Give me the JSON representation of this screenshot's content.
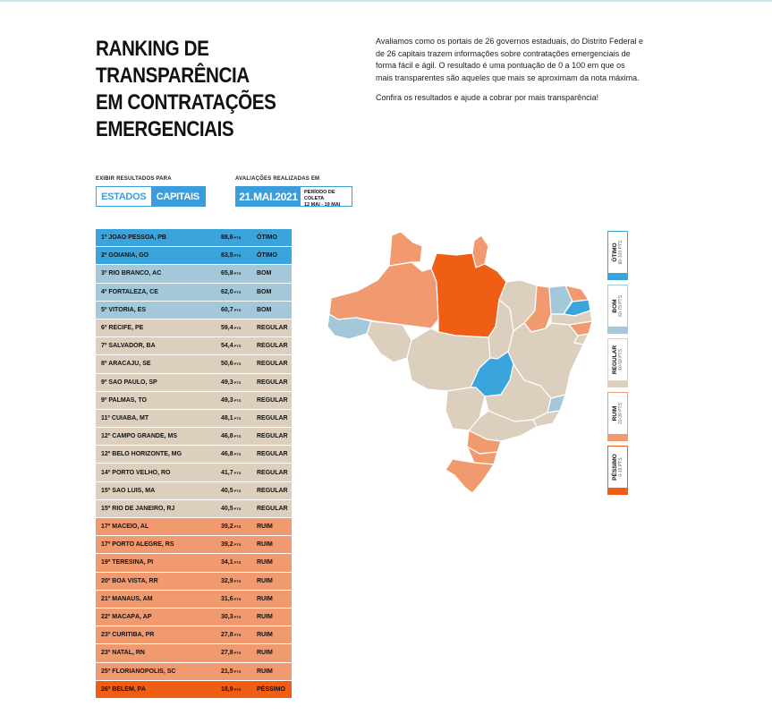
{
  "title_lines": [
    "RANKING DE",
    "TRANSPARÊNCIA",
    "EM CONTRATAÇÕES",
    "EMERGENCIAIS"
  ],
  "intro": {
    "p1": "Avaliamos como os portais de 26 governos estaduais, do Distrito Federal e de 26 capitais trazem informações sobre contratações emergenciais de forma fácil e ágil. O resultado é uma pontuação de 0 a 100 em que os mais transparentes são aqueles que mais se aproximam da nota máxima.",
    "p2": "Confira os resultados e ajude a cobrar por mais transparência!"
  },
  "controls": {
    "show_label": "EXIBIR RESULTADOS PARA",
    "tabs": [
      {
        "label": "ESTADOS",
        "active": false
      },
      {
        "label": "CAPITAIS",
        "active": true
      }
    ],
    "eval_label": "AVALIAÇÕES REALIZADAS EM",
    "date": "21.MAI.2021",
    "period_title": "PERÍODO DE COLETA",
    "period_range": "12 MAI - 19 MAI"
  },
  "colors": {
    "otimo": "#3aa5dd",
    "bom": "#a3c8d9",
    "regular": "#dccfbd",
    "ruim": "#f29a6f",
    "pessimo": "#ef5e14",
    "accent": "#3a9ede"
  },
  "ranking": [
    {
      "name": "1º JOÃO PESSOA, PB",
      "score": "88,6",
      "unit": "PTS",
      "category": "ÓTIMO",
      "level": "otimo"
    },
    {
      "name": "2º GOIÂNIA, GO",
      "score": "83,5",
      "unit": "PTS",
      "category": "ÓTIMO",
      "level": "otimo"
    },
    {
      "name": "3º RIO BRANCO, AC",
      "score": "65,8",
      "unit": "PTS",
      "category": "BOM",
      "level": "bom"
    },
    {
      "name": "4º FORTALEZA, CE",
      "score": "62,0",
      "unit": "PTS",
      "category": "BOM",
      "level": "bom"
    },
    {
      "name": "5º VITÓRIA, ES",
      "score": "60,7",
      "unit": "PTS",
      "category": "BOM",
      "level": "bom"
    },
    {
      "name": "6º RECIFE, PE",
      "score": "59,4",
      "unit": "PTS",
      "category": "REGULAR",
      "level": "regular"
    },
    {
      "name": "7º SALVADOR, BA",
      "score": "54,4",
      "unit": "PTS",
      "category": "REGULAR",
      "level": "regular"
    },
    {
      "name": "8º ARACAJU, SE",
      "score": "50,6",
      "unit": "PTS",
      "category": "REGULAR",
      "level": "regular"
    },
    {
      "name": "9º SÃO PAULO, SP",
      "score": "49,3",
      "unit": "PTS",
      "category": "REGULAR",
      "level": "regular"
    },
    {
      "name": "9º PALMAS, TO",
      "score": "49,3",
      "unit": "PTS",
      "category": "REGULAR",
      "level": "regular"
    },
    {
      "name": "11º CUIABÁ, MT",
      "score": "48,1",
      "unit": "PTS",
      "category": "REGULAR",
      "level": "regular"
    },
    {
      "name": "12º CAMPO GRANDE, MS",
      "score": "46,8",
      "unit": "PTS",
      "category": "REGULAR",
      "level": "regular"
    },
    {
      "name": "12º BELO HORIZONTE, MG",
      "score": "46,8",
      "unit": "PTS",
      "category": "REGULAR",
      "level": "regular"
    },
    {
      "name": "14º PORTO VELHO, RO",
      "score": "41,7",
      "unit": "PTS",
      "category": "REGULAR",
      "level": "regular"
    },
    {
      "name": "15º SÃO LUÍS, MA",
      "score": "40,5",
      "unit": "PTS",
      "category": "REGULAR",
      "level": "regular"
    },
    {
      "name": "15º RIO DE JANEIRO, RJ",
      "score": "40,5",
      "unit": "PTS",
      "category": "REGULAR",
      "level": "regular"
    },
    {
      "name": "17º MACEIÓ, AL",
      "score": "39,2",
      "unit": "PTS",
      "category": "RUIM",
      "level": "ruim"
    },
    {
      "name": "17º PORTO ALEGRE, RS",
      "score": "39,2",
      "unit": "PTS",
      "category": "RUIM",
      "level": "ruim"
    },
    {
      "name": "19º TERESINA, PI",
      "score": "34,1",
      "unit": "PTS",
      "category": "RUIM",
      "level": "ruim"
    },
    {
      "name": "20º BOA VISTA, RR",
      "score": "32,9",
      "unit": "PTS",
      "category": "RUIM",
      "level": "ruim"
    },
    {
      "name": "21º MANAUS, AM",
      "score": "31,6",
      "unit": "PTS",
      "category": "RUIM",
      "level": "ruim"
    },
    {
      "name": "22º MACAPÁ, AP",
      "score": "30,3",
      "unit": "PTS",
      "category": "RUIM",
      "level": "ruim"
    },
    {
      "name": "23º CURITIBA, PR",
      "score": "27,8",
      "unit": "PTS",
      "category": "RUIM",
      "level": "ruim"
    },
    {
      "name": "23º NATAL, RN",
      "score": "27,8",
      "unit": "PTS",
      "category": "RUIM",
      "level": "ruim"
    },
    {
      "name": "25º FLORIANÓPOLIS, SC",
      "score": "21,5",
      "unit": "PTS",
      "category": "RUIM",
      "level": "ruim"
    },
    {
      "name": "26º BELÉM, PA",
      "score": "18,9",
      "unit": "PTS",
      "category": "PÉSSIMO",
      "level": "pessimo"
    }
  ],
  "legend": [
    {
      "label": "ÓTIMO",
      "range": "80-100 PTS",
      "level": "otimo"
    },
    {
      "label": "BOM",
      "range": "60-79 PTS",
      "level": "bom"
    },
    {
      "label": "REGULAR",
      "range": "40-59 PTS",
      "level": "regular"
    },
    {
      "label": "RUIM",
      "range": "20-39 PTS",
      "level": "ruim"
    },
    {
      "label": "PÉSSIMO",
      "range": "0-19 PTS",
      "level": "pessimo"
    }
  ]
}
